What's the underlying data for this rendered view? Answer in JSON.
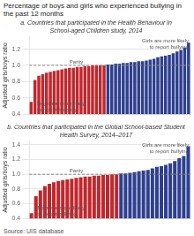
{
  "title": "Percentage of boys and girls who experienced bullying in the past 12 months",
  "annotations": [
    "Source: UIS database"
  ],
  "chart_data": [
    {
      "type": "bar",
      "title": "a. Countries that participated in the Health Behaviour in School-aged Children study, 2014",
      "ylabel": "Adjusted girls/boys ratio",
      "categories": [
        null,
        null,
        null,
        null,
        null,
        null,
        null,
        null,
        null,
        null,
        null,
        null,
        null,
        null,
        null,
        null,
        null,
        null,
        null,
        null,
        null,
        null,
        null,
        null,
        null,
        null,
        null,
        null,
        null,
        null,
        null,
        null,
        null,
        null,
        null,
        null,
        null,
        null,
        null,
        null,
        null,
        null
      ],
      "values": [
        0.55,
        0.82,
        0.87,
        0.89,
        0.91,
        0.92,
        0.93,
        0.94,
        0.95,
        0.96,
        0.97,
        0.97,
        0.98,
        0.98,
        0.99,
        0.99,
        1.0,
        1.0,
        1.0,
        1.0,
        1.01,
        1.01,
        1.02,
        1.02,
        1.03,
        1.03,
        1.04,
        1.04,
        1.05,
        1.05,
        1.06,
        1.07,
        1.08,
        1.1,
        1.11,
        1.12,
        1.13,
        1.15,
        1.17,
        1.19,
        1.22,
        1.28
      ],
      "colors": [
        "#c0272d",
        "#c0272d",
        "#c0272d",
        "#c0272d",
        "#c0272d",
        "#c0272d",
        "#c0272d",
        "#c0272d",
        "#c0272d",
        "#c0272d",
        "#c0272d",
        "#c0272d",
        "#c0272d",
        "#c0272d",
        "#c0272d",
        "#c0272d",
        "#c0272d",
        "#c0272d",
        "#c0272d",
        "#c0272d",
        "#2e3f8f",
        "#2e3f8f",
        "#2e3f8f",
        "#2e3f8f",
        "#2e3f8f",
        "#2e3f8f",
        "#2e3f8f",
        "#2e3f8f",
        "#2e3f8f",
        "#2e3f8f",
        "#2e3f8f",
        "#2e3f8f",
        "#2e3f8f",
        "#2e3f8f",
        "#2e3f8f",
        "#2e3f8f",
        "#2e3f8f",
        "#2e3f8f",
        "#2e3f8f",
        "#2e3f8f",
        "#2e3f8f",
        "#2e3f8f"
      ],
      "ylim": [
        0.4,
        1.35
      ],
      "yticks": [
        0.4,
        0.6,
        0.8,
        {
          "value": 1.0,
          "label": "1.0"
        },
        1.2
      ],
      "grid": true,
      "tick_labels": "y",
      "annotations": [
        {
          "text": "Parity",
          "y": 1.0
        },
        {
          "text": "Boys are more likely\nto report bullying"
        },
        {
          "text": "Girls are more likely\nto report bullying"
        }
      ]
    },
    {
      "type": "bar",
      "title": "b. Countries that participated in the Global School-based Student Health Survey, 2014–2017",
      "ylabel": "Adjusted girls/boys ratio",
      "categories": [
        null,
        null,
        null,
        null,
        null,
        null,
        null,
        null,
        null,
        null,
        null,
        null,
        null,
        null,
        null,
        null,
        null,
        null,
        null,
        null,
        null,
        null,
        null,
        null,
        null,
        null,
        null,
        null,
        null,
        null,
        null,
        null,
        null,
        null,
        null,
        null
      ],
      "values": [
        0.47,
        0.7,
        0.78,
        0.84,
        0.87,
        0.89,
        0.91,
        0.92,
        0.93,
        0.94,
        0.95,
        0.96,
        0.97,
        0.97,
        0.98,
        0.98,
        0.99,
        0.99,
        1.0,
        1.0,
        1.01,
        1.01,
        1.02,
        1.03,
        1.04,
        1.05,
        1.06,
        1.08,
        1.1,
        1.11,
        1.13,
        1.15,
        1.18,
        1.22,
        1.25,
        1.38
      ],
      "colors": [
        "#c0272d",
        "#c0272d",
        "#c0272d",
        "#c0272d",
        "#c0272d",
        "#c0272d",
        "#c0272d",
        "#c0272d",
        "#c0272d",
        "#c0272d",
        "#c0272d",
        "#c0272d",
        "#c0272d",
        "#c0272d",
        "#c0272d",
        "#c0272d",
        "#c0272d",
        "#c0272d",
        "#c0272d",
        "#c0272d",
        "#2e3f8f",
        "#2e3f8f",
        "#2e3f8f",
        "#2e3f8f",
        "#2e3f8f",
        "#2e3f8f",
        "#2e3f8f",
        "#2e3f8f",
        "#2e3f8f",
        "#2e3f8f",
        "#2e3f8f",
        "#2e3f8f",
        "#2e3f8f",
        "#2e3f8f",
        "#2e3f8f",
        "#2e3f8f"
      ],
      "ylim": [
        0.4,
        1.45
      ],
      "yticks": [
        0.4,
        0.6,
        0.8,
        {
          "value": 1.0,
          "label": "1.0"
        },
        1.2,
        1.4
      ],
      "grid": true,
      "tick_labels": "y",
      "annotations": [
        {
          "text": "Parity",
          "y": 1.0
        },
        {
          "text": "Boys are more likely\nto report bullying"
        },
        {
          "text": "Girls are more likely\nto report bullying"
        }
      ]
    }
  ]
}
